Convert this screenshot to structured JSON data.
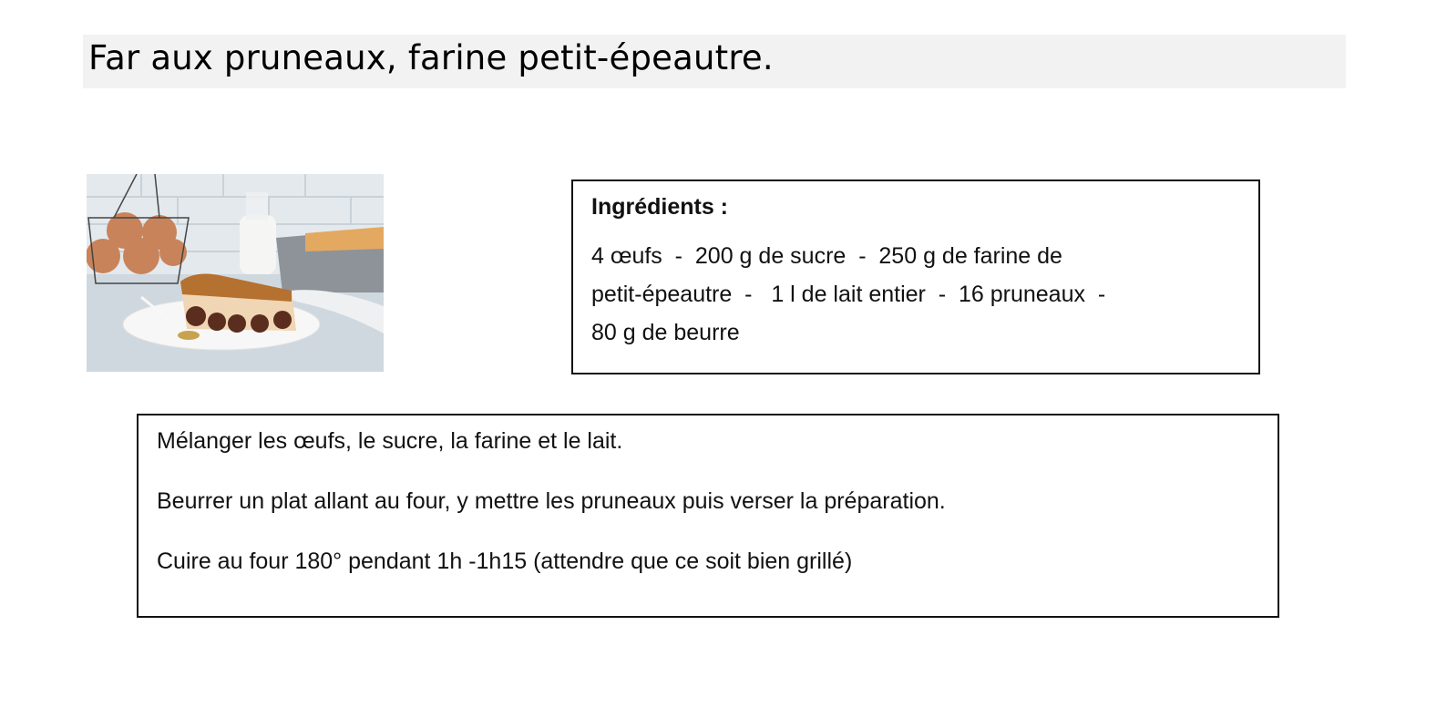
{
  "title": "Far aux pruneaux, farine petit-épeautre.",
  "photo": {
    "description_icon": "far-breton-photo"
  },
  "ingredients": {
    "heading": "Ingrédients :",
    "lines": [
      "4 œufs  -  200 g de sucre  -  250 g de farine de",
      "petit-épeautre  -   1 l de lait entier  -  16 pruneaux  -",
      "80 g de beurre"
    ]
  },
  "steps": [
    "Mélanger les œufs, le sucre, la farine et le lait.",
    "Beurrer un plat allant au four, y mettre les pruneaux puis verser la préparation.",
    "Cuire au four 180° pendant 1h -1h15 (attendre que ce soit bien grillé)"
  ]
}
